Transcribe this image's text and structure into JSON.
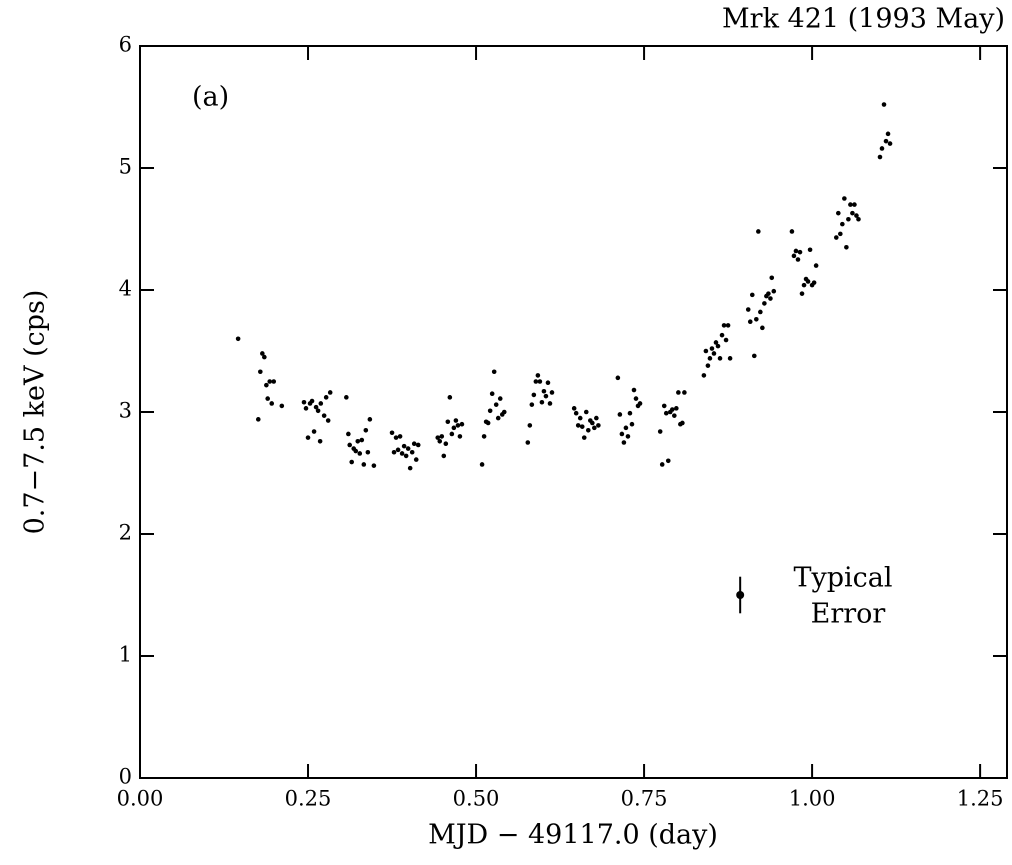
{
  "chart_data": {
    "type": "scatter",
    "title": "Mrk 421 (1993 May)",
    "panel_label": "(a)",
    "x_label": "MJD − 49117.0 (day)",
    "y_label": "0.7−7.5 keV (cps)",
    "color": "#000000",
    "xlim": [
      0,
      1.29
    ],
    "ylim": [
      0,
      6
    ],
    "xticks": [
      {
        "value": 0,
        "label": "0.00"
      },
      {
        "value": 0.25,
        "label": "0.25"
      },
      {
        "value": 0.5,
        "label": "0.50"
      },
      {
        "value": 0.75,
        "label": "0.75"
      },
      {
        "value": 1,
        "label": "1.00"
      },
      {
        "value": 1.25,
        "label": "1.25"
      }
    ],
    "yticks": [
      0,
      1,
      2,
      3,
      4,
      5,
      6
    ],
    "x": [
      0.146,
      0.176,
      0.179,
      0.182,
      0.185,
      0.188,
      0.19,
      0.193,
      0.199,
      0.196,
      0.211,
      0.244,
      0.247,
      0.25,
      0.253,
      0.256,
      0.259,
      0.262,
      0.265,
      0.268,
      0.269,
      0.274,
      0.277,
      0.28,
      0.283,
      0.307,
      0.31,
      0.312,
      0.315,
      0.318,
      0.321,
      0.324,
      0.327,
      0.33,
      0.333,
      0.336,
      0.339,
      0.342,
      0.348,
      0.375,
      0.378,
      0.381,
      0.384,
      0.387,
      0.39,
      0.393,
      0.396,
      0.399,
      0.402,
      0.405,
      0.408,
      0.411,
      0.414,
      0.443,
      0.446,
      0.449,
      0.452,
      0.455,
      0.458,
      0.461,
      0.464,
      0.467,
      0.47,
      0.473,
      0.476,
      0.479,
      0.509,
      0.512,
      0.515,
      0.518,
      0.521,
      0.524,
      0.527,
      0.53,
      0.533,
      0.536,
      0.539,
      0.542,
      0.577,
      0.58,
      0.583,
      0.586,
      0.589,
      0.592,
      0.595,
      0.598,
      0.601,
      0.604,
      0.607,
      0.61,
      0.613,
      0.646,
      0.649,
      0.652,
      0.655,
      0.658,
      0.661,
      0.664,
      0.667,
      0.67,
      0.673,
      0.676,
      0.679,
      0.682,
      0.711,
      0.714,
      0.717,
      0.72,
      0.723,
      0.726,
      0.729,
      0.732,
      0.735,
      0.738,
      0.741,
      0.744,
      0.774,
      0.777,
      0.78,
      0.783,
      0.786,
      0.789,
      0.792,
      0.795,
      0.798,
      0.801,
      0.804,
      0.807,
      0.81,
      0.839,
      0.842,
      0.845,
      0.848,
      0.851,
      0.854,
      0.857,
      0.86,
      0.863,
      0.866,
      0.869,
      0.872,
      0.875,
      0.878,
      0.905,
      0.908,
      0.911,
      0.914,
      0.917,
      0.92,
      0.923,
      0.926,
      0.929,
      0.932,
      0.935,
      0.938,
      0.94,
      0.943,
      0.97,
      0.973,
      0.976,
      0.979,
      0.982,
      0.985,
      0.988,
      0.991,
      0.994,
      0.997,
      1.0,
      1.003,
      1.006,
      1.036,
      1.039,
      1.042,
      1.045,
      1.048,
      1.051,
      1.054,
      1.057,
      1.06,
      1.063,
      1.066,
      1.069,
      1.101,
      1.104,
      1.107,
      1.11,
      1.113,
      1.116
    ],
    "values": [
      3.6,
      2.94,
      3.33,
      3.48,
      3.45,
      3.22,
      3.11,
      3.25,
      3.25,
      3.07,
      3.05,
      3.08,
      3.03,
      2.79,
      3.07,
      3.09,
      2.84,
      3.04,
      3.01,
      2.76,
      3.07,
      2.97,
      3.12,
      2.93,
      3.16,
      3.12,
      2.82,
      2.73,
      2.59,
      2.7,
      2.68,
      2.76,
      2.66,
      2.77,
      2.57,
      2.85,
      2.67,
      2.94,
      2.56,
      2.83,
      2.67,
      2.79,
      2.69,
      2.8,
      2.66,
      2.72,
      2.64,
      2.7,
      2.54,
      2.67,
      2.74,
      2.61,
      2.73,
      2.79,
      2.76,
      2.8,
      2.64,
      2.74,
      2.92,
      3.12,
      2.82,
      2.87,
      2.93,
      2.89,
      2.8,
      2.9,
      2.57,
      2.8,
      2.92,
      2.91,
      3.01,
      3.15,
      3.33,
      3.06,
      2.95,
      3.11,
      2.98,
      3.0,
      2.75,
      2.89,
      3.06,
      3.14,
      3.25,
      3.3,
      3.25,
      3.08,
      3.17,
      3.13,
      3.24,
      3.07,
      3.16,
      3.03,
      2.99,
      2.89,
      2.95,
      2.88,
      2.79,
      3.0,
      2.85,
      2.93,
      2.91,
      2.87,
      2.95,
      2.89,
      3.28,
      2.98,
      2.82,
      2.75,
      2.87,
      2.8,
      2.99,
      2.9,
      3.18,
      3.11,
      3.05,
      3.07,
      2.84,
      2.57,
      3.05,
      2.99,
      2.6,
      3.0,
      3.02,
      2.97,
      3.03,
      3.16,
      2.9,
      2.91,
      3.16,
      3.3,
      3.5,
      3.38,
      3.44,
      3.52,
      3.48,
      3.57,
      3.54,
      3.44,
      3.63,
      3.71,
      3.59,
      3.71,
      3.44,
      3.84,
      3.74,
      3.96,
      3.46,
      3.76,
      4.48,
      3.82,
      3.69,
      3.89,
      3.95,
      3.97,
      3.93,
      4.1,
      3.99,
      4.48,
      4.28,
      4.32,
      4.25,
      4.31,
      3.97,
      4.04,
      4.09,
      4.07,
      4.33,
      4.04,
      4.06,
      4.2,
      4.43,
      4.63,
      4.46,
      4.54,
      4.75,
      4.35,
      4.58,
      4.7,
      4.63,
      4.7,
      4.61,
      4.58,
      5.09,
      5.16,
      5.52,
      5.22,
      5.28,
      5.2
    ],
    "error_point": {
      "x": 0.893,
      "value": 1.5,
      "error": 0.15,
      "label": [
        "Typical",
        "Error"
      ]
    }
  }
}
